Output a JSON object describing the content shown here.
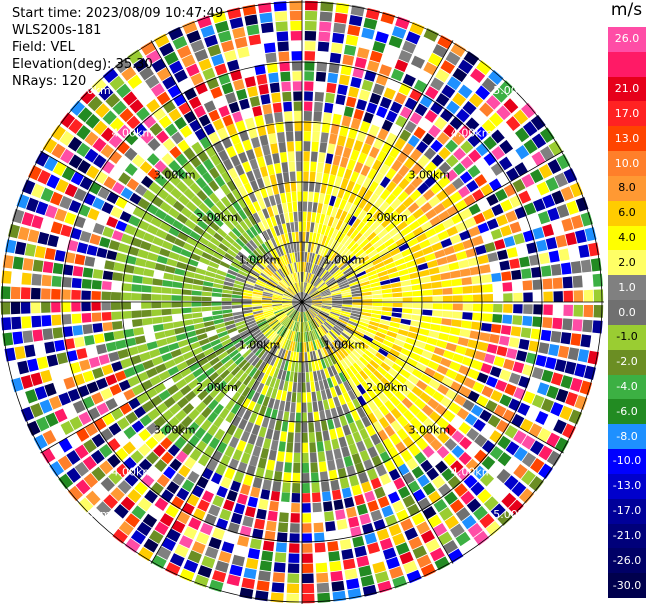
{
  "info": {
    "start_time": "Start time: 2023/08/09 10:47:49",
    "instrument": "WLS200s-181",
    "field": "Field: VEL",
    "elevation": "Elevation(deg): 35.30",
    "nrays": "NRays: 120"
  },
  "colorbar": {
    "unit": "m/s",
    "segments": [
      {
        "color": "#ff4da6",
        "label": "26.0"
      },
      {
        "color": "#ff1a66",
        "label": ""
      },
      {
        "color": "#e6001a",
        "label": "21.0"
      },
      {
        "color": "#ff2222",
        "label": "17.0"
      },
      {
        "color": "#ff4400",
        "label": "13.0"
      },
      {
        "color": "#ff7f2a",
        "label": "10.0"
      },
      {
        "color": "#ff9933",
        "label": "8.0"
      },
      {
        "color": "#ffcc00",
        "label": "6.0"
      },
      {
        "color": "#ffff00",
        "label": "4.0"
      },
      {
        "color": "#ffff66",
        "label": "2.0"
      },
      {
        "color": "#808080",
        "label": "1.0"
      },
      {
        "color": "#707070",
        "label": "0.0"
      },
      {
        "color": "#9acd32",
        "label": "-1.0"
      },
      {
        "color": "#6b8e23",
        "label": "-2.0"
      },
      {
        "color": "#3cb043",
        "label": "-4.0"
      },
      {
        "color": "#228b22",
        "label": "-6.0"
      },
      {
        "color": "#1e90ff",
        "label": "-8.0"
      },
      {
        "color": "#0000ff",
        "label": "-10.0"
      },
      {
        "color": "#0000cc",
        "label": "-13.0"
      },
      {
        "color": "#000099",
        "label": "-17.0"
      },
      {
        "color": "#00007a",
        "label": "-21.0"
      },
      {
        "color": "#000066",
        "label": "-26.0"
      },
      {
        "color": "#00004d",
        "label": "-30.0"
      }
    ]
  },
  "chart_data": {
    "type": "heatmap",
    "projection": "polar-ppi",
    "field": "VEL",
    "unit": "m/s",
    "value_range": [
      -30.0,
      26.0
    ],
    "rays": 120,
    "grid": true,
    "range_rings": [
      {
        "label": "1.00km"
      },
      {
        "label": "2.00km"
      },
      {
        "label": "3.00km"
      },
      {
        "label": "4.00km"
      },
      {
        "label": "5.00km"
      }
    ],
    "regions_m_s": [
      {
        "description": "near-field east/north",
        "approx_value": 4.0
      },
      {
        "description": "near-field west/south",
        "approx_value": -2.0
      },
      {
        "description": "gray bands",
        "approx_value": 0.0
      },
      {
        "description": "outer ranges noise",
        "approx_value": "mixed"
      }
    ]
  }
}
